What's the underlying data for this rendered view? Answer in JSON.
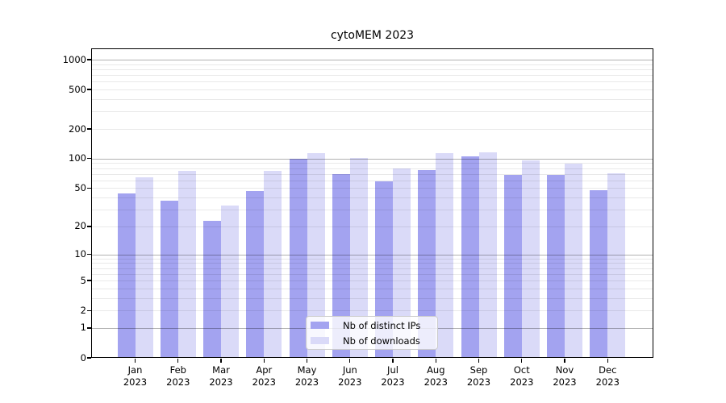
{
  "figure": {
    "title": "cytoMEM 2023"
  },
  "legend": {
    "items": [
      {
        "label": "Nb of distinct IPs",
        "color": "#a3a3f0"
      },
      {
        "label": "Nb of downloads",
        "color": "#dadaf8"
      }
    ]
  },
  "chart_data": {
    "type": "bar",
    "title": "cytoMEM 2023",
    "y_scale": "log1p",
    "categories": [
      "Jan",
      "Feb",
      "Mar",
      "Apr",
      "May",
      "Jun",
      "Jul",
      "Aug",
      "Sep",
      "Oct",
      "Nov",
      "Dec"
    ],
    "x_year": "2023",
    "series": [
      {
        "name": "Nb of distinct IPs",
        "color": "#a3a3f0",
        "values": [
          44,
          37,
          23,
          47,
          100,
          70,
          59,
          76,
          105,
          69,
          68,
          48
        ]
      },
      {
        "name": "Nb of downloads",
        "color": "#dadaf8",
        "values": [
          65,
          75,
          33,
          75,
          113,
          102,
          79,
          113,
          115,
          96,
          89,
          71
        ]
      }
    ],
    "y_ticks": [
      0,
      1,
      2,
      5,
      10,
      20,
      50,
      100,
      200,
      500,
      1000
    ],
    "y_minor_ticks": [
      3,
      4,
      6,
      7,
      8,
      9,
      30,
      40,
      60,
      70,
      80,
      90,
      300,
      400,
      600,
      700,
      800,
      900
    ],
    "ylim": [
      0,
      1290
    ],
    "xlabel": "",
    "ylabel": "",
    "grid": true,
    "legend_position": "bottom-center",
    "colors": {
      "major_grid": "#b3b3b3",
      "minor_grid": "#e9e9e9",
      "spine": "#000000",
      "background": "#ffffff"
    }
  }
}
